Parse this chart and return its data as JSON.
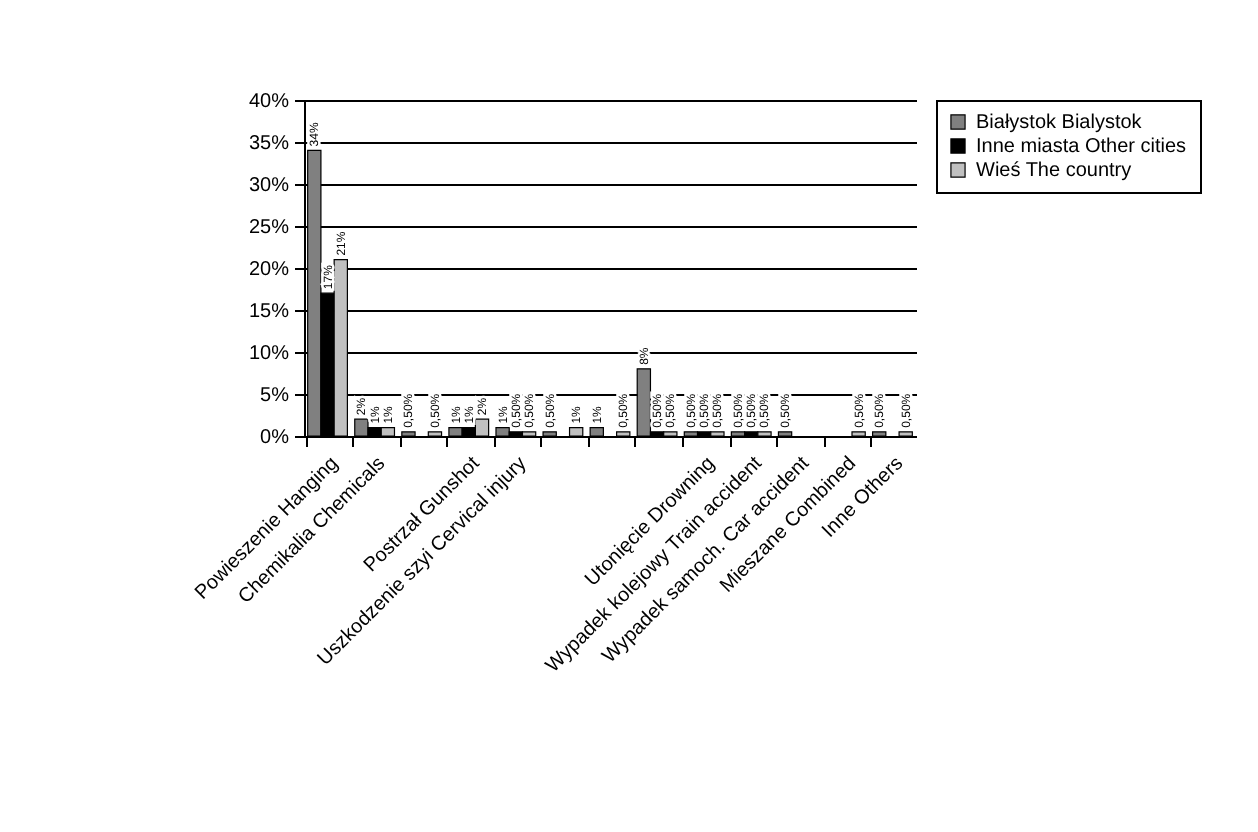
{
  "chart_data": {
    "type": "bar",
    "categories": [
      "Powieszenie Hanging",
      "Chemikalia Chemicals",
      null,
      "Postrzał Gunshot",
      "Uszkodzenie szyi Cervical injury",
      null,
      null,
      null,
      "Utonięcie Drowning",
      "Wypadek kolejowy Train accident",
      "Wypadek samoch. Car accident",
      "Mieszane Combined",
      "Inne Others"
    ],
    "series": [
      {
        "name": "Białystok Bialystok",
        "color": "#808080",
        "values": [
          34,
          2,
          0.5,
          1,
          1,
          0.5,
          1,
          8,
          0.5,
          0.5,
          0.5,
          null,
          0.5
        ],
        "value_labels": [
          "34%",
          "2%",
          "0,50%",
          "1%",
          "1%",
          "0,50%",
          "1%",
          "8%",
          "0,50%",
          "0,50%",
          "0,50%",
          null,
          "0,50%"
        ]
      },
      {
        "name": "Inne miasta Other cities",
        "color": "#000000",
        "values": [
          17,
          1,
          null,
          1,
          0.5,
          null,
          null,
          0.5,
          0.5,
          0.5,
          null,
          null,
          null
        ],
        "value_labels": [
          "17%",
          "1%",
          null,
          "1%",
          "0,50%",
          null,
          null,
          "0,50%",
          "0,50%",
          "0,50%",
          null,
          null,
          null
        ]
      },
      {
        "name": "Wieś The country",
        "color": "#c0c0c0",
        "values": [
          21,
          1,
          0.5,
          2,
          0.5,
          1,
          0.5,
          0.5,
          0.5,
          0.5,
          null,
          0.5,
          0.5
        ],
        "value_labels": [
          "21%",
          "1%",
          "0,50%",
          "2%",
          "0,50%",
          "1%",
          "0,50%",
          "0,50%",
          "0,50%",
          "0,50%",
          null,
          "0,50%",
          "0,50%"
        ]
      }
    ],
    "ylim": [
      0,
      40
    ],
    "yticks": [
      {
        "value": 0,
        "label": "0%"
      },
      {
        "value": 5,
        "label": "5%"
      },
      {
        "value": 10,
        "label": "10%"
      },
      {
        "value": 15,
        "label": "15%"
      },
      {
        "value": 20,
        "label": "20%"
      },
      {
        "value": 25,
        "label": "25%"
      },
      {
        "value": 30,
        "label": "30%"
      },
      {
        "value": 35,
        "label": "35%"
      },
      {
        "value": 40,
        "label": "40%"
      }
    ],
    "grid": "y",
    "legend": "right"
  }
}
